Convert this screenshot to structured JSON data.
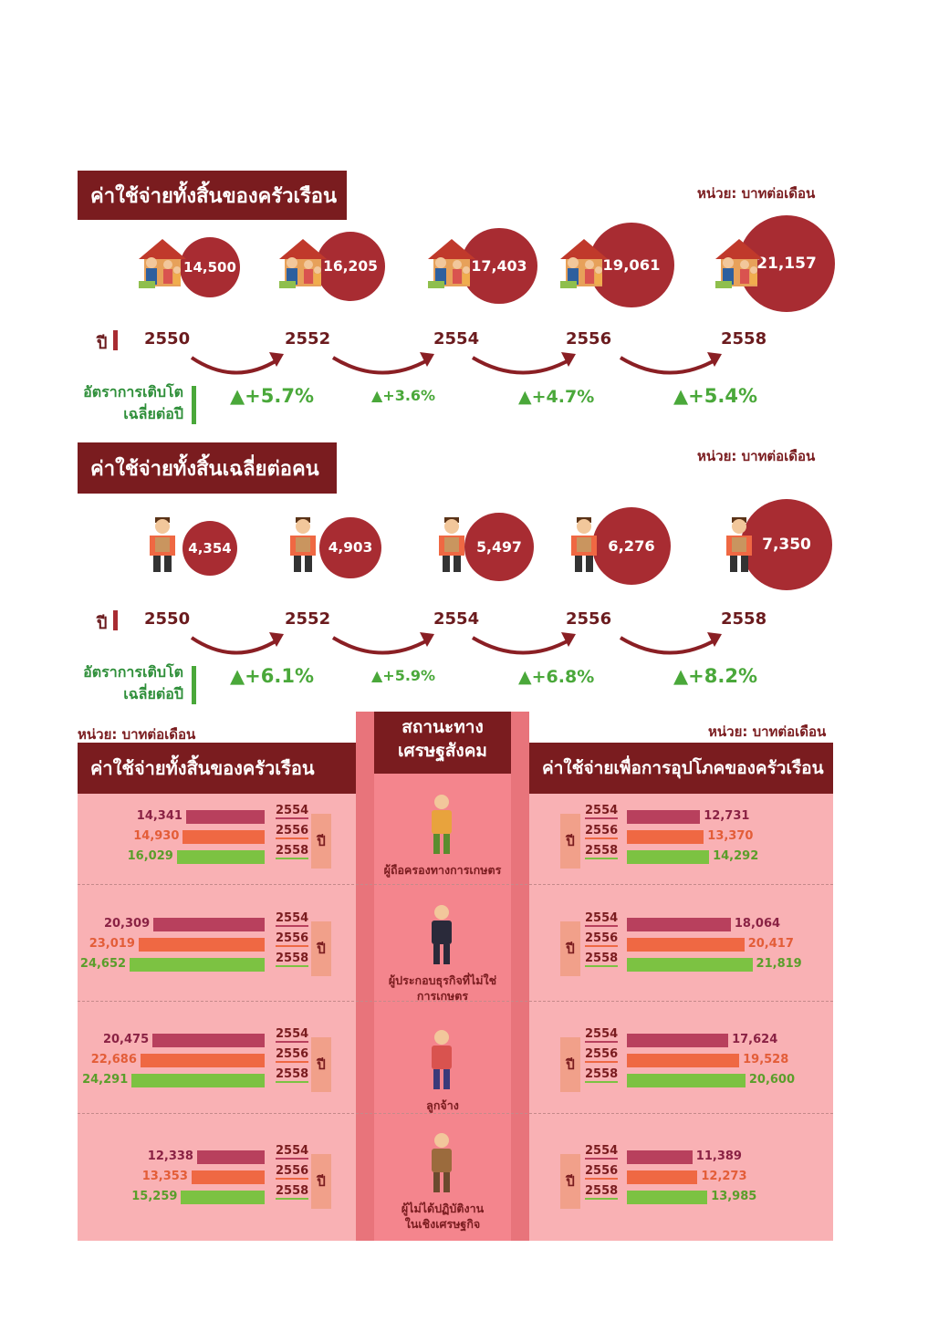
{
  "section1": {
    "title": "ค่าใช้จ่ายทั้งสิ้นของครัวเรือน",
    "unit": "หน่วย: บาทต่อเดือน",
    "year_label": "ปี",
    "growth_label_1": "อัตราการเติบโต",
    "growth_label_2": "เฉลี่ยต่อปี",
    "years": [
      "2550",
      "2552",
      "2554",
      "2556",
      "2558"
    ],
    "values": [
      "14,500",
      "16,205",
      "17,403",
      "19,061",
      "21,157"
    ],
    "growth": [
      "▲+5.7%",
      "▲+3.6%",
      "▲+4.7%",
      "▲+5.4%"
    ]
  },
  "section2": {
    "title": "ค่าใช้จ่ายทั้งสิ้นเฉลี่ยต่อคน",
    "unit": "หน่วย: บาทต่อเดือน",
    "year_label": "ปี",
    "growth_label_1": "อัตราการเติบโต",
    "growth_label_2": "เฉลี่ยต่อปี",
    "years": [
      "2550",
      "2552",
      "2554",
      "2556",
      "2558"
    ],
    "values": [
      "4,354",
      "4,903",
      "5,497",
      "6,276",
      "7,350"
    ],
    "growth": [
      "▲+6.1%",
      "▲+5.9%",
      "▲+6.8%",
      "▲+8.2%"
    ]
  },
  "section3": {
    "left_unit": "หน่วย: บาทต่อเดือน",
    "right_unit": "หน่วย: บาทต่อเดือน",
    "left_title": "ค่าใช้จ่ายทั้งสิ้นของครัวเรือน",
    "right_title": "ค่าใช้จ่ายเพื่อการอุปโภคของครัวเรือน",
    "center_title_1": "สถานะทาง",
    "center_title_2": "เศรษฐสังคม",
    "year_label": "ปี",
    "bar_years": [
      "2554",
      "2556",
      "2558"
    ],
    "groups": [
      {
        "name_1": "ผู้ถือครองทางการเกษตร",
        "name_2": "",
        "left": [
          "14,341",
          "14,930",
          "16,029"
        ],
        "right": [
          "12,731",
          "13,370",
          "14,292"
        ]
      },
      {
        "name_1": "ผู้ประกอบธุรกิจที่ไม่ใช่",
        "name_2": "การเกษตร",
        "left": [
          "20,309",
          "23,019",
          "24,652"
        ],
        "right": [
          "18,064",
          "20,417",
          "21,819"
        ]
      },
      {
        "name_1": "ลูกจ้าง",
        "name_2": "",
        "left": [
          "20,475",
          "22,686",
          "24,291"
        ],
        "right": [
          "17,624",
          "19,528",
          "20,600"
        ]
      },
      {
        "name_1": "ผู้ไม่ได้ปฏิบัติงาน",
        "name_2": "ในเชิงเศรษฐกิจ",
        "left": [
          "12,338",
          "13,353",
          "15,259"
        ],
        "right": [
          "11,389",
          "12,273",
          "13,985"
        ]
      }
    ]
  },
  "colors": {
    "dark_red": "#7a1c1f",
    "bubble": "#a82c32",
    "bar_2554": "#b8405d",
    "bar_2556": "#ef6843",
    "bar_2558": "#7cc242",
    "panel": "#f9b1b4",
    "center_panel": "#f4858d",
    "growth_green": "#4aa83a"
  },
  "chart_data": [
    {
      "type": "bar",
      "title": "ค่าใช้จ่ายทั้งสิ้นของครัวเรือน",
      "categories": [
        "2550",
        "2552",
        "2554",
        "2556",
        "2558"
      ],
      "values": [
        14500,
        16205,
        17403,
        19061,
        21157
      ],
      "growth_pct": [
        5.7,
        3.6,
        4.7,
        5.4
      ]
    },
    {
      "type": "bar",
      "title": "ค่าใช้จ่ายทั้งสิ้นเฉลี่ยต่อคน",
      "categories": [
        "2550",
        "2552",
        "2554",
        "2556",
        "2558"
      ],
      "values": [
        4354,
        4903,
        5497,
        6276,
        7350
      ],
      "growth_pct": [
        6.1,
        5.9,
        6.8,
        8.2
      ]
    },
    {
      "type": "bar",
      "title": "ค่าใช้จ่ายทั้งสิ้นของครัวเรือน",
      "categories": [
        "ผู้ถือครองทางการเกษตร",
        "ผู้ประกอบธุรกิจที่ไม่ใช่การเกษตร",
        "ลูกจ้าง",
        "ผู้ไม่ได้ปฏิบัติงานในเชิงเศรษฐกิจ"
      ],
      "series": [
        {
          "name": "2554",
          "values": [
            14341,
            20309,
            20475,
            12338
          ]
        },
        {
          "name": "2556",
          "values": [
            14930,
            23019,
            22686,
            13353
          ]
        },
        {
          "name": "2558",
          "values": [
            16029,
            24652,
            24291,
            15259
          ]
        }
      ]
    },
    {
      "type": "bar",
      "title": "ค่าใช้จ่ายเพื่อการอุปโภคของครัวเรือน",
      "categories": [
        "ผู้ถือครองทางการเกษตร",
        "ผู้ประกอบธุรกิจที่ไม่ใช่การเกษตร",
        "ลูกจ้าง",
        "ผู้ไม่ได้ปฏิบัติงานในเชิงเศรษฐกิจ"
      ],
      "series": [
        {
          "name": "2554",
          "values": [
            12731,
            18064,
            17624,
            11389
          ]
        },
        {
          "name": "2556",
          "values": [
            13370,
            20417,
            19528,
            12273
          ]
        },
        {
          "name": "2558",
          "values": [
            14292,
            21819,
            20600,
            13985
          ]
        }
      ]
    }
  ]
}
